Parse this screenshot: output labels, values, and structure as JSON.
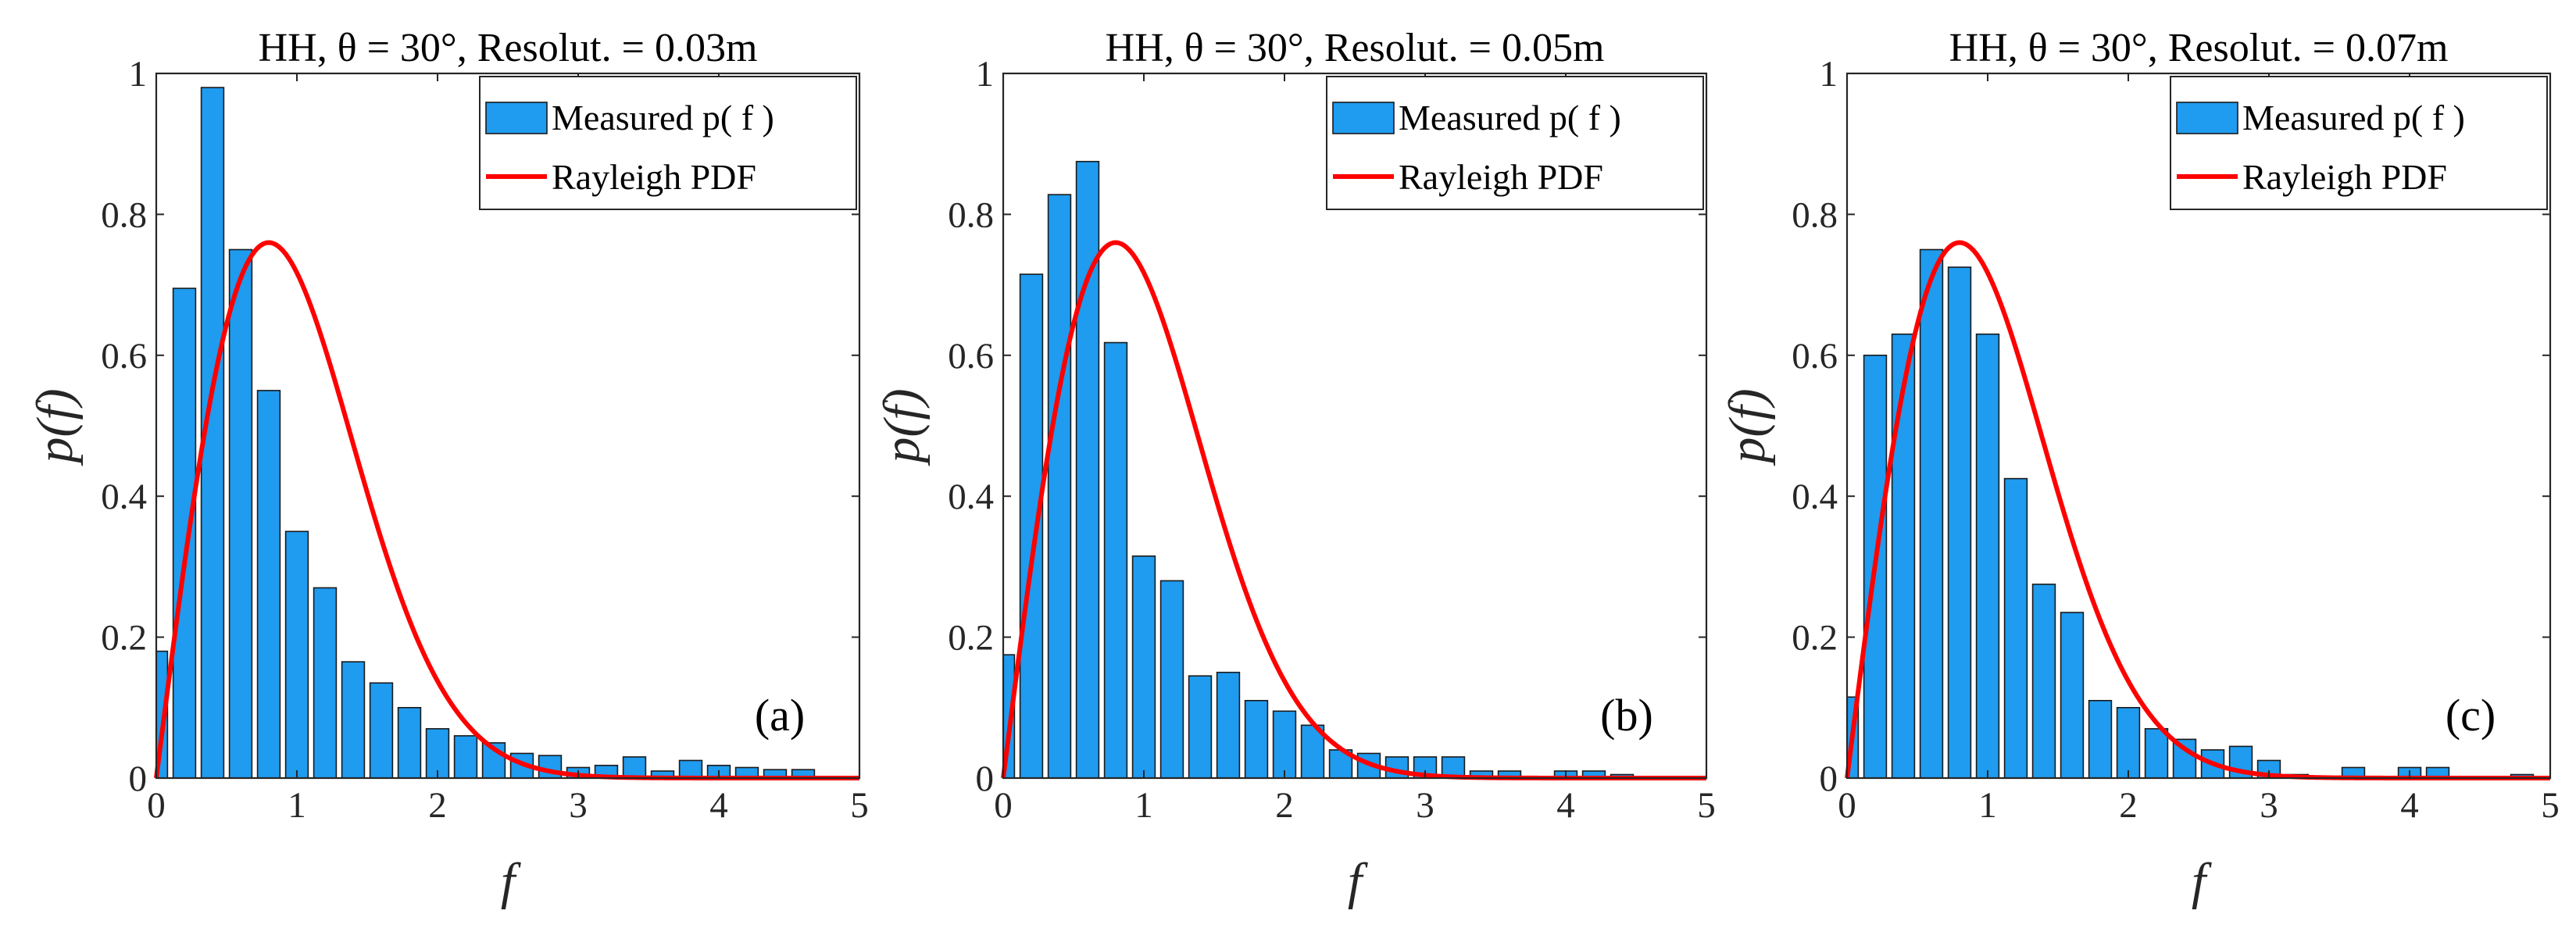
{
  "colors": {
    "bar": "#1f9bef",
    "curve": "#ff0000",
    "axis": "#262626"
  },
  "chart_data": [
    {
      "type": "bar",
      "title": "HH, θ = 30°, Resolut. = 0.03m",
      "panel_tag": "(a)",
      "xlabel": "f",
      "ylabel": "p(f)",
      "xlim": [
        0,
        5
      ],
      "ylim": [
        0,
        1
      ],
      "xticks": [
        "0",
        "1",
        "2",
        "3",
        "4",
        "5"
      ],
      "yticks": [
        "0",
        "0.2",
        "0.4",
        "0.6",
        "0.8",
        "1"
      ],
      "legend_position": "top-right",
      "legend": {
        "bars": "Measured p( f )",
        "line": "Rayleigh PDF"
      },
      "bin_width": 0.2,
      "bin_centers": [
        0.0,
        0.2,
        0.4,
        0.6,
        0.8,
        1.0,
        1.2,
        1.4,
        1.6,
        1.8,
        2.0,
        2.2,
        2.4,
        2.6,
        2.8,
        3.0,
        3.2,
        3.4,
        3.6,
        3.8,
        4.0,
        4.2,
        4.4,
        4.6,
        4.8,
        5.0
      ],
      "series": [
        {
          "name": "Measured p( f )",
          "values": [
            0.18,
            0.695,
            0.98,
            0.75,
            0.55,
            0.35,
            0.27,
            0.165,
            0.135,
            0.1,
            0.07,
            0.06,
            0.05,
            0.035,
            0.032,
            0.015,
            0.018,
            0.03,
            0.01,
            0.025,
            0.018,
            0.015,
            0.012,
            0.012,
            0.0,
            0.0
          ]
        },
        {
          "name": "Rayleigh PDF",
          "sigma": 0.8,
          "peak": 0.76
        }
      ]
    },
    {
      "type": "bar",
      "title": "HH, θ = 30°, Resolut. = 0.05m",
      "panel_tag": "(b)",
      "xlabel": "f",
      "ylabel": "p(f)",
      "xlim": [
        0,
        5
      ],
      "ylim": [
        0,
        1
      ],
      "xticks": [
        "0",
        "1",
        "2",
        "3",
        "4",
        "5"
      ],
      "yticks": [
        "0",
        "0.2",
        "0.4",
        "0.6",
        "0.8",
        "1"
      ],
      "legend_position": "top-right",
      "legend": {
        "bars": "Measured p( f )",
        "line": "Rayleigh PDF"
      },
      "bin_width": 0.2,
      "bin_centers": [
        0.0,
        0.2,
        0.4,
        0.6,
        0.8,
        1.0,
        1.2,
        1.4,
        1.6,
        1.8,
        2.0,
        2.2,
        2.4,
        2.6,
        2.8,
        3.0,
        3.2,
        3.4,
        3.6,
        3.8,
        4.0,
        4.2,
        4.4,
        4.6,
        4.8,
        5.0
      ],
      "series": [
        {
          "name": "Measured p( f )",
          "values": [
            0.175,
            0.715,
            0.828,
            0.875,
            0.618,
            0.315,
            0.28,
            0.145,
            0.15,
            0.11,
            0.095,
            0.075,
            0.04,
            0.035,
            0.03,
            0.03,
            0.03,
            0.01,
            0.01,
            0.0,
            0.01,
            0.01,
            0.005,
            0.0,
            0.0,
            0.0
          ]
        },
        {
          "name": "Rayleigh PDF",
          "sigma": 0.8,
          "peak": 0.76
        }
      ]
    },
    {
      "type": "bar",
      "title": "HH, θ = 30°, Resolut. = 0.07m",
      "panel_tag": "(c)",
      "xlabel": "f",
      "ylabel": "p(f)",
      "xlim": [
        0,
        5
      ],
      "ylim": [
        0,
        1
      ],
      "xticks": [
        "0",
        "1",
        "2",
        "3",
        "4",
        "5"
      ],
      "yticks": [
        "0",
        "0.2",
        "0.4",
        "0.6",
        "0.8",
        "1"
      ],
      "legend_position": "top-right",
      "legend": {
        "bars": "Measured p( f )",
        "line": "Rayleigh PDF"
      },
      "bin_width": 0.2,
      "bin_centers": [
        0.0,
        0.2,
        0.4,
        0.6,
        0.8,
        1.0,
        1.2,
        1.4,
        1.6,
        1.8,
        2.0,
        2.2,
        2.4,
        2.6,
        2.8,
        3.0,
        3.2,
        3.4,
        3.6,
        3.8,
        4.0,
        4.2,
        4.4,
        4.6,
        4.8,
        5.0
      ],
      "series": [
        {
          "name": "Measured p( f )",
          "values": [
            0.115,
            0.6,
            0.63,
            0.75,
            0.725,
            0.63,
            0.425,
            0.275,
            0.235,
            0.11,
            0.1,
            0.07,
            0.055,
            0.04,
            0.045,
            0.025,
            0.005,
            0.0,
            0.015,
            0.0,
            0.015,
            0.015,
            0.0,
            0.0,
            0.005,
            0.0
          ]
        },
        {
          "name": "Rayleigh PDF",
          "sigma": 0.8,
          "peak": 0.76
        }
      ]
    }
  ]
}
